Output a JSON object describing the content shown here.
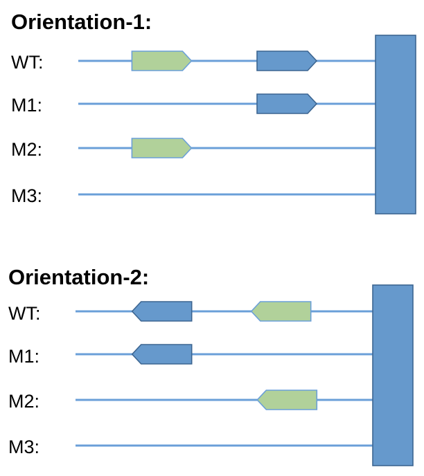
{
  "colors": {
    "line": "#6a9fd8",
    "gene_green": "#b1d19a",
    "gene_green_stroke": "#6a9fd8",
    "gene_blue": "#6699cc",
    "gene_blue_stroke": "#3c6591",
    "block": "#6699cc",
    "block_stroke": "#3c6591"
  },
  "panels": [
    {
      "title": "Orientation-1:",
      "rows": [
        {
          "label": "WT:",
          "genes": [
            {
              "color": "green",
              "direction": "right",
              "start": 0.18,
              "end": 0.38
            },
            {
              "color": "blue",
              "direction": "right",
              "start": 0.6,
              "end": 0.8
            }
          ]
        },
        {
          "label": "M1:",
          "genes": [
            {
              "color": "blue",
              "direction": "right",
              "start": 0.6,
              "end": 0.8
            }
          ]
        },
        {
          "label": "M2:",
          "genes": [
            {
              "color": "green",
              "direction": "right",
              "start": 0.18,
              "end": 0.38
            }
          ]
        },
        {
          "label": "M3:",
          "genes": []
        }
      ]
    },
    {
      "title": "Orientation-2:",
      "rows": [
        {
          "label": "WT:",
          "genes": [
            {
              "color": "blue",
              "direction": "left",
              "start": 0.19,
              "end": 0.39
            },
            {
              "color": "green",
              "direction": "left",
              "start": 0.59,
              "end": 0.79
            }
          ]
        },
        {
          "label": "M1:",
          "genes": [
            {
              "color": "blue",
              "direction": "left",
              "start": 0.19,
              "end": 0.39
            }
          ]
        },
        {
          "label": "M2:",
          "genes": [
            {
              "color": "green",
              "direction": "left",
              "start": 0.61,
              "end": 0.81
            }
          ]
        },
        {
          "label": "M3:",
          "genes": []
        }
      ]
    }
  ]
}
